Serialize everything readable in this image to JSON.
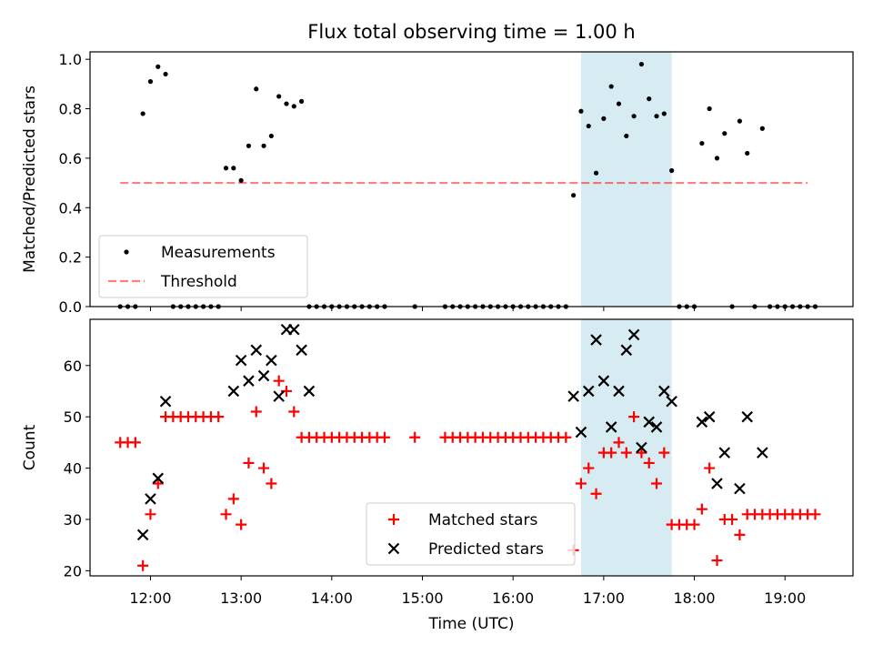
{
  "chart_data": [
    {
      "type": "scatter",
      "title": "Flux total observing time = 1.00 h",
      "xlabel": "",
      "ylabel": "Matched/Predicted stars",
      "xlim": [
        "11:20",
        "19:45"
      ],
      "ylim": [
        0,
        1.03
      ],
      "yticks": [
        "0.0",
        "0.2",
        "0.4",
        "0.6",
        "0.8",
        "1.0"
      ],
      "xticks": [
        "12:00",
        "13:00",
        "14:00",
        "15:00",
        "16:00",
        "17:00",
        "18:00",
        "19:00"
      ],
      "show_xtick_labels": false,
      "highlight_span": [
        "16:45",
        "17:45"
      ],
      "highlight_color": "#add8e6",
      "threshold": {
        "name": "Threshold",
        "y": 0.5,
        "x": [
          "11:40",
          "19:15"
        ],
        "color": "#ff0000"
      },
      "legend": {
        "placement": "lower-left"
      },
      "series": [
        {
          "name": "Measurements",
          "color": "#000000",
          "x": [
            "11:40",
            "11:45",
            "11:50",
            "11:55",
            "12:00",
            "12:05",
            "12:10",
            "12:15",
            "12:20",
            "12:25",
            "12:30",
            "12:35",
            "12:40",
            "12:45",
            "12:50",
            "12:55",
            "13:00",
            "13:05",
            "13:10",
            "13:15",
            "13:20",
            "13:25",
            "13:30",
            "13:35",
            "13:40",
            "13:45",
            "13:50",
            "13:55",
            "14:00",
            "14:05",
            "14:10",
            "14:15",
            "14:20",
            "14:25",
            "14:30",
            "14:35",
            "14:55",
            "15:15",
            "15:20",
            "15:25",
            "15:30",
            "15:35",
            "15:40",
            "15:45",
            "15:50",
            "15:55",
            "16:00",
            "16:05",
            "16:10",
            "16:15",
            "16:20",
            "16:25",
            "16:30",
            "16:35",
            "16:40",
            "16:45",
            "16:50",
            "16:55",
            "17:00",
            "17:05",
            "17:10",
            "17:15",
            "17:20",
            "17:25",
            "17:30",
            "17:35",
            "17:40",
            "17:45",
            "17:50",
            "17:55",
            "18:00",
            "18:05",
            "18:10",
            "18:15",
            "18:20",
            "18:25",
            "18:30",
            "18:35",
            "18:40",
            "18:45",
            "18:50",
            "18:55",
            "19:00",
            "19:05",
            "19:10",
            "19:15",
            "19:20"
          ],
          "y": [
            0,
            0,
            0,
            0.78,
            0.91,
            0.97,
            0.94,
            0,
            0,
            0,
            0,
            0,
            0,
            0,
            0.56,
            0.56,
            0.51,
            0.65,
            0.88,
            0.65,
            0.69,
            0.85,
            0.82,
            0.81,
            0.83,
            0,
            0,
            0,
            0,
            0,
            0,
            0,
            0,
            0,
            0,
            0,
            0,
            0,
            0,
            0,
            0,
            0,
            0,
            0,
            0,
            0,
            0,
            0,
            0,
            0,
            0,
            0,
            0,
            0,
            0.45,
            0.79,
            0.73,
            0.54,
            0.76,
            0.89,
            0.82,
            0.69,
            0.77,
            0.98,
            0.84,
            0.77,
            0.78,
            0.55,
            0,
            0,
            0,
            0.66,
            0.8,
            0.6,
            0.7,
            0,
            0.75,
            0.62,
            0,
            0.72,
            0,
            0,
            0,
            0,
            0,
            0,
            0
          ]
        }
      ]
    },
    {
      "type": "scatter",
      "title": "",
      "xlabel": "Time (UTC)",
      "ylabel": "Count",
      "xlim": [
        "11:20",
        "19:45"
      ],
      "ylim": [
        19,
        69
      ],
      "yticks": [
        "20",
        "30",
        "40",
        "50",
        "60"
      ],
      "xticks": [
        "12:00",
        "13:00",
        "14:00",
        "15:00",
        "16:00",
        "17:00",
        "18:00",
        "19:00"
      ],
      "show_xtick_labels": true,
      "highlight_span": [
        "16:45",
        "17:45"
      ],
      "highlight_color": "#add8e6",
      "legend": {
        "placement": "lower-center"
      },
      "series": [
        {
          "name": "Matched stars",
          "marker": "plus",
          "color": "#ff0000",
          "x": [
            "11:40",
            "11:45",
            "11:50",
            "11:55",
            "12:00",
            "12:05",
            "12:10",
            "12:15",
            "12:20",
            "12:25",
            "12:30",
            "12:35",
            "12:40",
            "12:45",
            "12:50",
            "12:55",
            "13:00",
            "13:05",
            "13:10",
            "13:15",
            "13:20",
            "13:25",
            "13:30",
            "13:35",
            "13:40",
            "13:45",
            "13:50",
            "13:55",
            "14:00",
            "14:05",
            "14:10",
            "14:15",
            "14:20",
            "14:25",
            "14:30",
            "14:35",
            "14:55",
            "15:15",
            "15:20",
            "15:25",
            "15:30",
            "15:35",
            "15:40",
            "15:45",
            "15:50",
            "15:55",
            "16:00",
            "16:05",
            "16:10",
            "16:15",
            "16:20",
            "16:25",
            "16:30",
            "16:35",
            "16:40",
            "16:45",
            "16:50",
            "16:55",
            "17:00",
            "17:05",
            "17:10",
            "17:15",
            "17:20",
            "17:25",
            "17:30",
            "17:35",
            "17:40",
            "17:45",
            "17:50",
            "17:55",
            "18:00",
            "18:05",
            "18:10",
            "18:15",
            "18:20",
            "18:25",
            "18:30",
            "18:35",
            "18:40",
            "18:45",
            "18:50",
            "18:55",
            "19:00",
            "19:05",
            "19:10",
            "19:15",
            "19:20"
          ],
          "y": [
            45,
            45,
            45,
            21,
            31,
            37,
            50,
            50,
            50,
            50,
            50,
            50,
            50,
            50,
            31,
            34,
            29,
            41,
            51,
            40,
            37,
            57,
            55,
            51,
            46,
            46,
            46,
            46,
            46,
            46,
            46,
            46,
            46,
            46,
            46,
            46,
            46,
            46,
            46,
            46,
            46,
            46,
            46,
            46,
            46,
            46,
            46,
            46,
            46,
            46,
            46,
            46,
            46,
            46,
            24,
            37,
            40,
            35,
            43,
            43,
            45,
            43,
            50,
            43,
            41,
            37,
            43,
            29,
            29,
            29,
            29,
            32,
            40,
            22,
            30,
            30,
            27,
            31,
            31,
            31,
            31,
            31,
            31,
            31,
            31,
            31,
            31
          ]
        },
        {
          "name": "Predicted stars",
          "marker": "x",
          "color": "#000000",
          "x": [
            "11:55",
            "12:00",
            "12:05",
            "12:10",
            "12:55",
            "13:00",
            "13:05",
            "13:10",
            "13:15",
            "13:20",
            "13:25",
            "13:30",
            "13:35",
            "13:40",
            "13:45",
            "16:40",
            "16:45",
            "16:50",
            "16:55",
            "17:00",
            "17:05",
            "17:10",
            "17:15",
            "17:20",
            "17:25",
            "17:30",
            "17:35",
            "17:40",
            "17:45",
            "18:05",
            "18:10",
            "18:15",
            "18:20",
            "18:30",
            "18:35",
            "18:45"
          ],
          "y": [
            27,
            34,
            38,
            53,
            55,
            61,
            57,
            63,
            58,
            61,
            54,
            67,
            67,
            63,
            55,
            54,
            47,
            55,
            65,
            57,
            48,
            55,
            63,
            66,
            44,
            49,
            48,
            55,
            53,
            49,
            50,
            37,
            43,
            36,
            50,
            43
          ]
        }
      ]
    }
  ]
}
